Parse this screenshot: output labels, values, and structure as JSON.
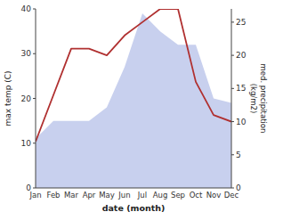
{
  "chart_data": {
    "type": "line",
    "categories": [
      "Jan",
      "Feb",
      "Mar",
      "Apr",
      "May",
      "Jun",
      "Jul",
      "Aug",
      "Sep",
      "Oct",
      "Nov",
      "Dec"
    ],
    "xlabel": "date (month)",
    "ylabel": "max temp (C)",
    "y2label": "med. precipitation\n(kg/m2)",
    "series": [
      {
        "type": "area",
        "color": "#c8d0ee",
        "values": [
          11,
          15,
          15,
          15,
          18,
          27,
          39,
          35,
          32,
          32,
          20,
          19
        ]
      },
      {
        "type": "line",
        "color": "#b03030",
        "axis": "y2",
        "values": [
          7,
          14,
          21,
          21,
          20,
          23,
          25,
          27,
          27,
          16,
          11,
          10
        ]
      }
    ],
    "ylim": [
      0,
      40
    ],
    "yticks": [
      0,
      10,
      20,
      30,
      40
    ],
    "y2lim": [
      0,
      27
    ],
    "y2ticks": [
      0,
      5,
      10,
      15,
      20,
      25
    ],
    "grid": false
  }
}
